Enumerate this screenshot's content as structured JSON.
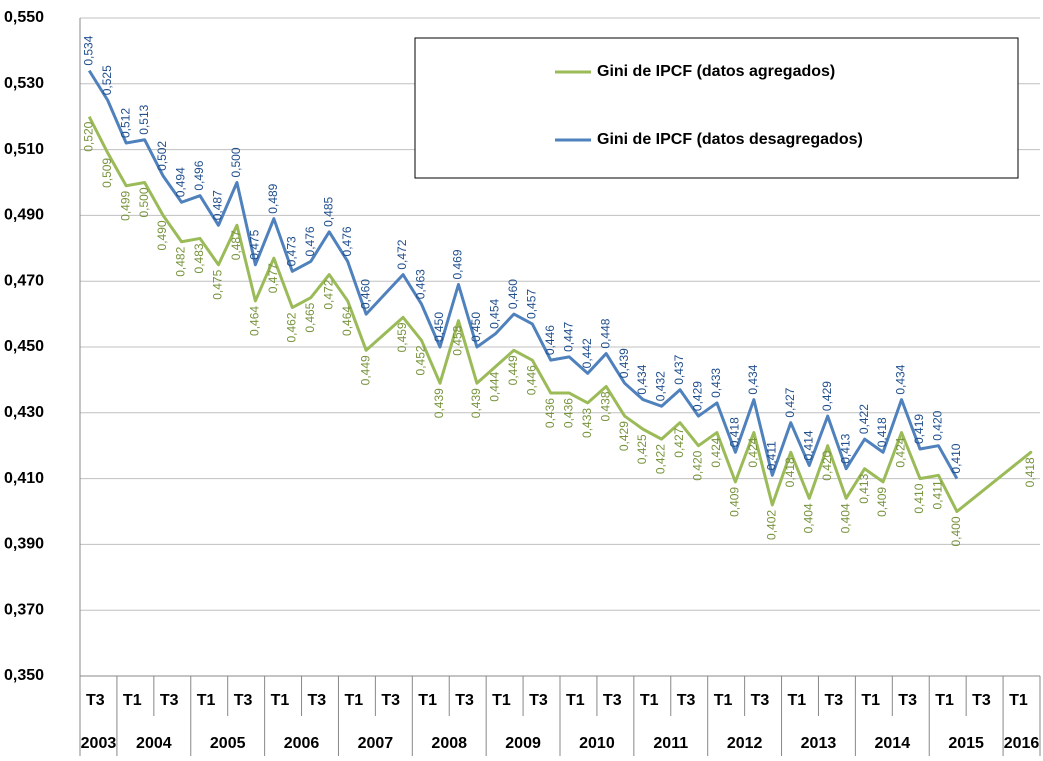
{
  "chart_data": {
    "type": "line",
    "categories": [
      "T3",
      null,
      "T1",
      null,
      "T3",
      null,
      "T1",
      null,
      "T3",
      null,
      "T1",
      null,
      "T3",
      null,
      "T1",
      null,
      "T3",
      null,
      "T1",
      null,
      "T3",
      null,
      "T1",
      null,
      "T3",
      null,
      "T1",
      null,
      "T3",
      null,
      "T1",
      null,
      "T3",
      null,
      "T1",
      null,
      "T3",
      null,
      "T1",
      null,
      "T3",
      null,
      "T1",
      null,
      "T3",
      null,
      "T1",
      null,
      "T3",
      null,
      "T1",
      null
    ],
    "year_labels": [
      "2003",
      "2004",
      "2005",
      "2006",
      "2007",
      "2008",
      "2009",
      "2010",
      "2011",
      "2012",
      "2013",
      "2014",
      "2015",
      "2016"
    ],
    "series": [
      {
        "name": "Gini de IPCF (datos agregados)",
        "color": "#9bbb59",
        "label_color": "#77933c",
        "label_side": "below",
        "values": [
          0.52,
          0.509,
          0.499,
          0.5,
          0.49,
          0.482,
          0.483,
          0.475,
          0.487,
          0.464,
          0.477,
          0.462,
          0.465,
          0.472,
          0.464,
          0.449,
          null,
          0.459,
          0.452,
          0.439,
          0.458,
          0.439,
          0.444,
          0.449,
          0.446,
          0.436,
          0.436,
          0.433,
          0.438,
          0.429,
          0.425,
          0.422,
          0.427,
          0.42,
          0.424,
          0.409,
          0.424,
          0.402,
          0.418,
          0.404,
          0.42,
          0.404,
          0.413,
          0.409,
          0.424,
          0.41,
          0.411,
          0.4,
          null,
          null,
          null,
          0.418
        ],
        "value_labels": [
          "0,520",
          "0,509",
          "0,499",
          "0,500",
          "0,490",
          "0,482",
          "0,483",
          "0,475",
          "0,487",
          "0,464",
          "0,477",
          "0,462",
          "0,465",
          "0,472",
          "0,464",
          "0,449",
          null,
          "0,459",
          "0,452",
          "0,439",
          "0,458",
          "0,439",
          "0,444",
          "0,449",
          "0,446",
          "0,436",
          "0,436",
          "0,433",
          "0,438",
          "0,429",
          "0,425",
          "0,422",
          "0,427",
          "0,420",
          "0,424",
          "0,409",
          "0,424",
          "0,402",
          "0,418",
          "0,404",
          "0,420",
          "0,404",
          "0,413",
          "0,409",
          "0,424",
          "0,410",
          "0,411",
          "0,400",
          null,
          null,
          null,
          "0,418"
        ]
      },
      {
        "name": "Gini de IPCF (datos desagregados)",
        "color": "#4f81bd",
        "label_color": "#1f4e8c",
        "label_side": "above",
        "values": [
          0.534,
          0.525,
          0.512,
          0.513,
          0.502,
          0.494,
          0.496,
          0.487,
          0.5,
          0.475,
          0.489,
          0.473,
          0.476,
          0.485,
          0.476,
          0.46,
          null,
          0.472,
          0.463,
          0.45,
          0.469,
          0.45,
          0.454,
          0.46,
          0.457,
          0.446,
          0.447,
          0.442,
          0.448,
          0.439,
          0.434,
          0.432,
          0.437,
          0.429,
          0.433,
          0.418,
          0.434,
          0.411,
          0.427,
          0.414,
          0.429,
          0.413,
          0.422,
          0.418,
          0.434,
          0.419,
          0.42,
          0.41,
          null,
          null,
          null,
          null
        ],
        "value_labels": [
          "0,534",
          "0,525",
          "0,512",
          "0,513",
          "0,502",
          "0,494",
          "0,496",
          "0,487",
          "0,500",
          "0,475",
          "0,489",
          "0,473",
          "0,476",
          "0,485",
          "0,476",
          "0,460",
          null,
          "0,472",
          "0,463",
          "0,450",
          "0,469",
          "0,450",
          "0,454",
          "0,460",
          "0,457",
          "0,446",
          "0,447",
          "0,442",
          "0,448",
          "0,439",
          "0,434",
          "0,432",
          "0,437",
          "0,429",
          "0,433",
          "0,418",
          "0,434",
          "0,411",
          "0,427",
          "0,414",
          "0,429",
          "0,413",
          "0,422",
          "0,418",
          "0,434",
          "0,419",
          "0,420",
          "0,410",
          null,
          null,
          null,
          null
        ]
      }
    ],
    "ylim": [
      0.35,
      0.55
    ],
    "yticks": [
      {
        "value": 0.35,
        "label": "0,350"
      },
      {
        "value": 0.37,
        "label": "0,370"
      },
      {
        "value": 0.39,
        "label": "0,390"
      },
      {
        "value": 0.41,
        "label": "0,410"
      },
      {
        "value": 0.43,
        "label": "0,430"
      },
      {
        "value": 0.45,
        "label": "0,450"
      },
      {
        "value": 0.47,
        "label": "0,470"
      },
      {
        "value": 0.49,
        "label": "0,490"
      },
      {
        "value": 0.51,
        "label": "0,510"
      },
      {
        "value": 0.53,
        "label": "0,530"
      },
      {
        "value": 0.55,
        "label": "0,550"
      }
    ],
    "grid": true,
    "legend": "upper right"
  }
}
